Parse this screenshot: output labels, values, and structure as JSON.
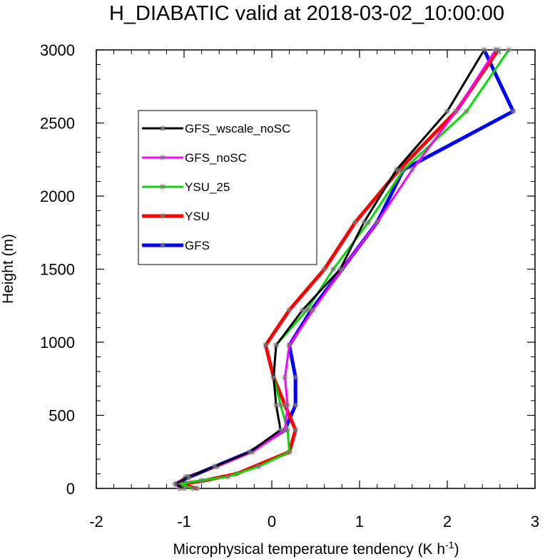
{
  "chart_data": {
    "type": "line",
    "title": "H_DIABATIC valid at 2018-03-02_10:00:00",
    "xlabel": "Microphysical temperature tendency (K h",
    "xlabel_sup": "-1",
    "xlabel_close": ")",
    "ylabel": "Height (m)",
    "xlim": [
      -2,
      3
    ],
    "ylim": [
      0,
      3000
    ],
    "xticks": [
      "-2",
      "-1",
      "0",
      "1",
      "2",
      "3"
    ],
    "yticks": [
      "0",
      "500",
      "1000",
      "1500",
      "2000",
      "2500",
      "3000"
    ],
    "legend_position": "upper-left",
    "series": [
      {
        "name": "GFS_wscale_noSC",
        "color": "#000000",
        "width": 3,
        "points": [
          [
            -1.0,
            0
          ],
          [
            -1.1,
            30
          ],
          [
            -0.95,
            80
          ],
          [
            -0.65,
            150
          ],
          [
            -0.25,
            250
          ],
          [
            0.1,
            400
          ],
          [
            0.05,
            570
          ],
          [
            0.02,
            760
          ],
          [
            0.05,
            980
          ],
          [
            0.35,
            1220
          ],
          [
            0.78,
            1500
          ],
          [
            1.05,
            1820
          ],
          [
            1.42,
            2180
          ],
          [
            2.0,
            2580
          ],
          [
            2.42,
            3000
          ]
        ]
      },
      {
        "name": "GFS_noSC",
        "color": "#ff00ff",
        "width": 3,
        "points": [
          [
            -1.05,
            0
          ],
          [
            -1.1,
            30
          ],
          [
            -0.98,
            80
          ],
          [
            -0.62,
            150
          ],
          [
            -0.22,
            250
          ],
          [
            0.15,
            400
          ],
          [
            0.18,
            570
          ],
          [
            0.15,
            760
          ],
          [
            0.2,
            980
          ],
          [
            0.47,
            1220
          ],
          [
            0.8,
            1500
          ],
          [
            1.2,
            1820
          ],
          [
            1.6,
            2180
          ],
          [
            2.1,
            2580
          ],
          [
            2.55,
            3000
          ]
        ]
      },
      {
        "name": "YSU_25",
        "color": "#00dd00",
        "width": 3,
        "points": [
          [
            -0.9,
            0
          ],
          [
            -1.05,
            30
          ],
          [
            -0.8,
            55
          ],
          [
            -0.5,
            80
          ],
          [
            -0.15,
            150
          ],
          [
            0.2,
            250
          ],
          [
            0.18,
            400
          ],
          [
            0.1,
            570
          ],
          [
            0.02,
            760
          ],
          [
            0.05,
            980
          ],
          [
            0.4,
            1220
          ],
          [
            0.7,
            1500
          ],
          [
            1.1,
            1820
          ],
          [
            1.5,
            2180
          ],
          [
            2.22,
            2580
          ],
          [
            2.7,
            3000
          ]
        ]
      },
      {
        "name": "YSU",
        "color": "#ff0000",
        "width": 5,
        "points": [
          [
            -0.85,
            0
          ],
          [
            -1.05,
            30
          ],
          [
            -0.8,
            50
          ],
          [
            -0.4,
            100
          ],
          [
            0.2,
            250
          ],
          [
            0.27,
            400
          ],
          [
            0.15,
            570
          ],
          [
            0.02,
            760
          ],
          [
            -0.07,
            980
          ],
          [
            0.2,
            1220
          ],
          [
            0.6,
            1500
          ],
          [
            0.95,
            1820
          ],
          [
            1.45,
            2180
          ],
          [
            2.1,
            2580
          ],
          [
            2.58,
            3000
          ]
        ]
      },
      {
        "name": "GFS",
        "color": "#0000ff",
        "width": 5,
        "points": [
          [
            -1.1,
            30
          ],
          [
            -0.95,
            75
          ],
          [
            -0.65,
            150
          ],
          [
            -0.25,
            250
          ],
          [
            0.15,
            400
          ],
          [
            0.27,
            570
          ],
          [
            0.27,
            760
          ],
          [
            0.2,
            980
          ],
          [
            0.45,
            1220
          ],
          [
            0.8,
            1500
          ],
          [
            1.2,
            1820
          ],
          [
            1.5,
            2180
          ],
          [
            2.75,
            2580
          ],
          [
            2.42,
            3000
          ]
        ]
      }
    ]
  }
}
